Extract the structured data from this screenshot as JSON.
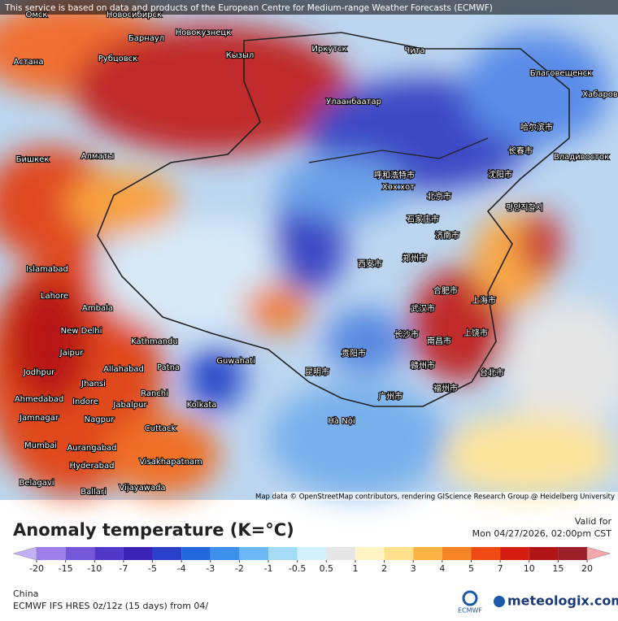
{
  "header": {
    "notice": "This service is based on data and products of the European Centre for Medium-range Weather Forecasts (ECMWF)"
  },
  "map": {
    "attribution": "Map data © OpenStreetMap contributors, rendering GIScience Research Group @ Heidelberg University",
    "cities": [
      "Омск",
      "Новосибирск",
      "Барнаул",
      "Новокузнецк",
      "Рубцовск",
      "Астана",
      "Кызыл",
      "Иркутск",
      "Чита",
      "Благовещенск",
      "Хабаров",
      "Улаанбаатар",
      "哈尔滨市",
      "长春市",
      "Владивосток",
      "Бишкек",
      "Алматы",
      "呼和浩特市",
      "Хөх хот",
      "沈阳市",
      "北京市",
      "평양직할시",
      "石家庄市",
      "济南市",
      "Islamabad",
      "郑州市",
      "西安市",
      "Lahore",
      "合肥市",
      "武汉市",
      "上海市",
      "Ambala",
      "New Delhi",
      "Kathmandu",
      "长沙市",
      "上饶市",
      "南昌市",
      "Jaipur",
      "Guwahati",
      "贵阳市",
      "Jodhpur",
      "Allahabad",
      "Patna",
      "昆明市",
      "赣州市",
      "台北市",
      "Jhansi",
      "Ranchi",
      "福州市",
      "广州市",
      "Ahmedabad",
      "Indore",
      "Jabalpur",
      "Kolkata",
      "Jamnagar",
      "Nagpur",
      "Cuttack",
      "Hà Nội",
      "Mumbai",
      "Aurangabad",
      "Hyderabad",
      "Visakhapatnam",
      "Belagavi",
      "Vijayawada",
      "Ballari"
    ]
  },
  "legend": {
    "title": "Anomaly temperature (K=°C)",
    "ticks": [
      -20,
      -15,
      -10,
      -7,
      -5,
      -4,
      -3,
      -2,
      -1,
      -0.5,
      0.5,
      1,
      2,
      3,
      4,
      5,
      7,
      10,
      15,
      20
    ],
    "colors": [
      "#c4b0f4",
      "#9a80e8",
      "#7458d8",
      "#5238c8",
      "#3a22b4",
      "#2a40c8",
      "#2268dc",
      "#3c90ec",
      "#6cb8f4",
      "#a4dcf8",
      "#d4f0fc",
      "#e6e6e6",
      "#fff4c4",
      "#fde08c",
      "#fbb444",
      "#f88428",
      "#f04a14",
      "#d41c10",
      "#b01414",
      "#9c2028",
      "#c44448",
      "#e07478",
      "#f4a8ac"
    ]
  },
  "valid": {
    "label": "Valid for",
    "time": "Mon 04/27/2026, 02:00pm CST"
  },
  "footer": {
    "region": "China",
    "model": "ECMWF IFS HRES 0z/12z (15 days) from 04/",
    "ecmwf": "ECMWF",
    "brand": "meteologix.com"
  }
}
